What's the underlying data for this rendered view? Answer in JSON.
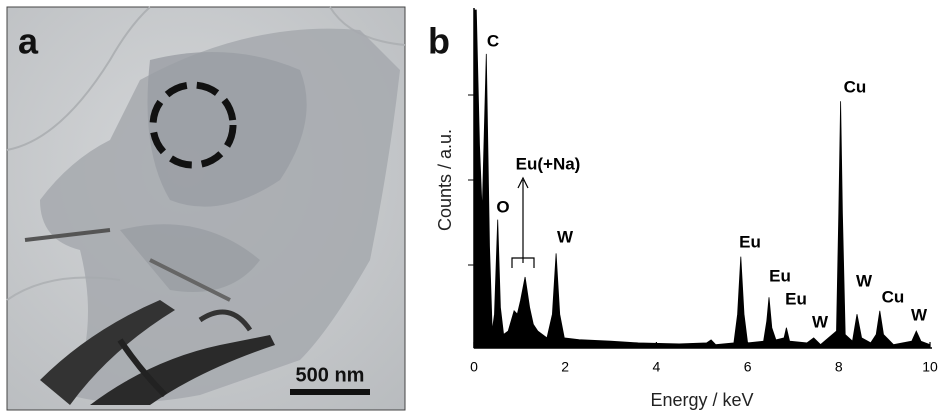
{
  "panel_a": {
    "label": "a",
    "scale_bar": "500 nm"
  },
  "chart_data": {
    "type": "area",
    "label": "b",
    "xlabel": "Energy / keV",
    "ylabel": "Counts / a.u.",
    "x": [
      0,
      0.05,
      0.12,
      0.18,
      0.27,
      0.34,
      0.4,
      0.45,
      0.52,
      0.58,
      0.65,
      0.75,
      0.88,
      0.95,
      1.02,
      1.12,
      1.22,
      1.3,
      1.4,
      1.6,
      1.72,
      1.8,
      1.88,
      1.98,
      2.3,
      3,
      3.6,
      4.5,
      5.1,
      5.2,
      5.3,
      5.7,
      5.78,
      5.85,
      5.92,
      6.0,
      6.35,
      6.42,
      6.47,
      6.53,
      6.62,
      6.8,
      6.85,
      6.92,
      7.3,
      7.45,
      7.6,
      7.95,
      8.0,
      8.04,
      8.08,
      8.14,
      8.3,
      8.4,
      8.5,
      8.7,
      8.82,
      8.9,
      8.98,
      9.2,
      9.6,
      9.7,
      9.8,
      10
    ],
    "values": [
      100,
      100,
      60,
      40,
      87,
      30,
      5,
      10,
      38,
      12,
      4,
      5,
      11,
      10,
      14,
      21,
      12,
      7,
      5,
      3,
      10,
      28,
      10,
      3,
      2.5,
      2,
      1.5,
      1.2,
      1.5,
      2.4,
      1,
      1.5,
      10,
      27,
      10,
      1.5,
      2,
      8,
      15,
      6,
      2.4,
      3,
      6,
      2,
      1.5,
      3,
      1,
      5,
      40,
      73,
      40,
      4,
      2,
      10,
      3,
      1.5,
      4,
      11,
      4,
      1,
      2,
      5,
      2,
      1
    ],
    "color": "#000000",
    "xlim": [
      0,
      10
    ],
    "xticks": [
      0,
      2,
      4,
      6,
      8,
      10
    ],
    "ylim": [
      0,
      100
    ],
    "annotations": [
      "C",
      "O",
      "Eu(+Na)",
      "W",
      "Eu",
      "Eu",
      "Eu",
      "W",
      "Cu",
      "W",
      "Cu",
      "W"
    ]
  }
}
